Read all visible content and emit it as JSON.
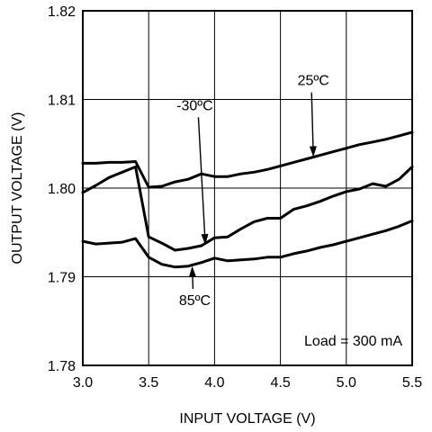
{
  "chart_data": {
    "type": "line",
    "title": "",
    "xlabel": "INPUT VOLTAGE (V)",
    "ylabel": "OUTPUT VOLTAGE (V)",
    "xlim": [
      3.0,
      5.5
    ],
    "ylim": [
      1.78,
      1.82
    ],
    "xticks": [
      3.0,
      3.5,
      4.0,
      4.5,
      5.0,
      5.5
    ],
    "xtick_labels": [
      "3.0",
      "3.5",
      "4.0",
      "4.5",
      "5.0",
      "5.5"
    ],
    "yticks": [
      1.78,
      1.79,
      1.8,
      1.81,
      1.82
    ],
    "ytick_labels": [
      "1.78",
      "1.79",
      "1.80",
      "1.81",
      "1.82"
    ],
    "grid": true,
    "annotation": "Load = 300 mA",
    "series": [
      {
        "name": "25ºC",
        "x": [
          3.0,
          3.1,
          3.2,
          3.3,
          3.4,
          3.5,
          3.6,
          3.7,
          3.8,
          3.9,
          4.0,
          4.1,
          4.2,
          4.3,
          4.4,
          4.5,
          4.6,
          4.7,
          4.8,
          4.9,
          5.0,
          5.1,
          5.2,
          5.3,
          5.4,
          5.5
        ],
        "y": [
          1.8028,
          1.8028,
          1.8029,
          1.8029,
          1.803,
          1.8001,
          1.8002,
          1.8007,
          1.801,
          1.8016,
          1.8013,
          1.8013,
          1.8016,
          1.8018,
          1.8021,
          1.8025,
          1.8029,
          1.8033,
          1.8037,
          1.8041,
          1.8045,
          1.8049,
          1.8052,
          1.8055,
          1.8059,
          1.8063
        ]
      },
      {
        "name": "-30ºC",
        "x": [
          3.0,
          3.1,
          3.2,
          3.3,
          3.4,
          3.5,
          3.6,
          3.7,
          3.8,
          3.9,
          4.0,
          4.1,
          4.2,
          4.3,
          4.4,
          4.5,
          4.6,
          4.7,
          4.8,
          4.9,
          5.0,
          5.1,
          5.2,
          5.3,
          5.4,
          5.5
        ],
        "y": [
          1.7995,
          1.8003,
          1.8012,
          1.8018,
          1.8024,
          1.7945,
          1.7938,
          1.793,
          1.7932,
          1.7935,
          1.7944,
          1.7945,
          1.7954,
          1.7962,
          1.7966,
          1.7966,
          1.7976,
          1.798,
          1.7985,
          1.7991,
          1.7996,
          1.7999,
          1.8005,
          1.8002,
          1.801,
          1.8024
        ]
      },
      {
        "name": "85ºC",
        "x": [
          3.0,
          3.1,
          3.2,
          3.3,
          3.4,
          3.5,
          3.6,
          3.7,
          3.8,
          3.9,
          4.0,
          4.1,
          4.2,
          4.3,
          4.4,
          4.5,
          4.6,
          4.7,
          4.8,
          4.9,
          5.0,
          5.1,
          5.2,
          5.3,
          5.4,
          5.5
        ],
        "y": [
          1.794,
          1.7937,
          1.7938,
          1.7939,
          1.7943,
          1.7922,
          1.7914,
          1.7911,
          1.7912,
          1.7916,
          1.7921,
          1.7918,
          1.7919,
          1.792,
          1.7922,
          1.7922,
          1.7926,
          1.7929,
          1.7933,
          1.7936,
          1.794,
          1.7944,
          1.7948,
          1.7952,
          1.7957,
          1.7963
        ]
      }
    ],
    "labels": [
      {
        "series": "25ºC",
        "text": "25ºC",
        "label_x": 4.75,
        "label_y": 1.8116,
        "arrow_to_x": 4.75,
        "arrow_to_y": 1.8035
      },
      {
        "series": "-30ºC",
        "text": "-30ºC",
        "label_x": 3.85,
        "label_y": 1.8088,
        "arrow_to_x": 3.93,
        "arrow_to_y": 1.7936
      },
      {
        "series": "85ºC",
        "text": "85ºC",
        "label_x": 3.85,
        "label_y": 1.7868,
        "arrow_to_x": 3.83,
        "arrow_to_y": 1.7912
      }
    ]
  }
}
